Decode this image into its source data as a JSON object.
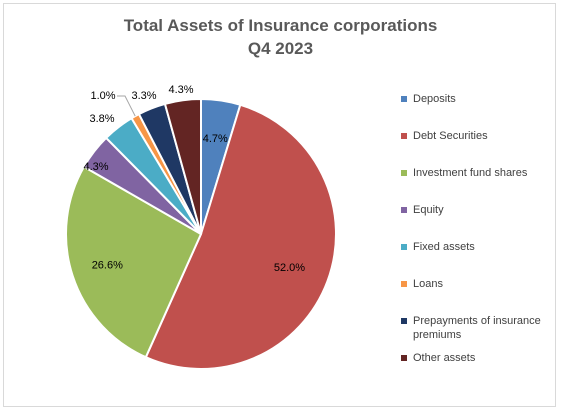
{
  "chart_data": {
    "type": "pie",
    "title": "Total Assets of Insurance corporations",
    "subtitle": "Q4 2023",
    "legend_position": "right",
    "slices": [
      {
        "name": "Deposits",
        "value": 4.7,
        "label": "4.7%",
        "color": "#4f81bd"
      },
      {
        "name": "Debt Securities",
        "value": 52.0,
        "label": "52.0%",
        "color": "#c0504d"
      },
      {
        "name": "Investment fund shares",
        "value": 26.6,
        "label": "26.6%",
        "color": "#9bbb59"
      },
      {
        "name": "Equity",
        "value": 4.3,
        "label": "4.3%",
        "color": "#8064a2"
      },
      {
        "name": "Fixed assets",
        "value": 3.8,
        "label": "3.8%",
        "color": "#4bacc6"
      },
      {
        "name": "Loans",
        "value": 1.0,
        "label": "1.0%",
        "color": "#f79646"
      },
      {
        "name": "Prepayments of insurance premiums",
        "value": 3.3,
        "label": "3.3%",
        "color": "#1f3864"
      },
      {
        "name": "Other assets",
        "value": 4.3,
        "label": "4.3%",
        "color": "#632523"
      }
    ]
  }
}
